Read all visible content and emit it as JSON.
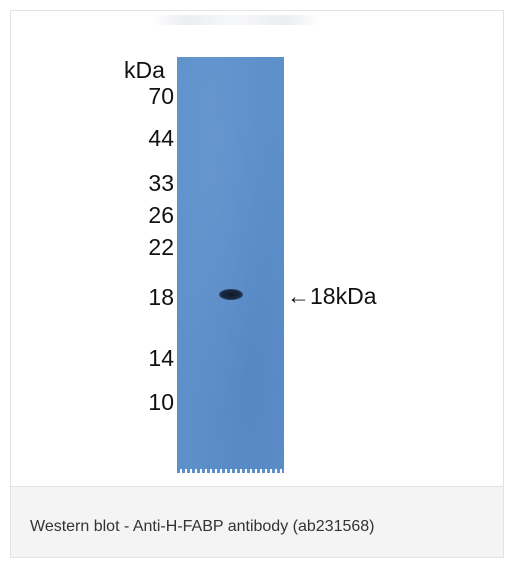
{
  "blot": {
    "unit_label": "kDa",
    "markers": [
      "70",
      "44",
      "33",
      "26",
      "22",
      "18",
      "14",
      "10"
    ],
    "band_label": "←18kDa",
    "lane_color": "#5d8fc9"
  },
  "caption": {
    "text": "Western blot - Anti-H-FABP antibody (ab231568)"
  }
}
